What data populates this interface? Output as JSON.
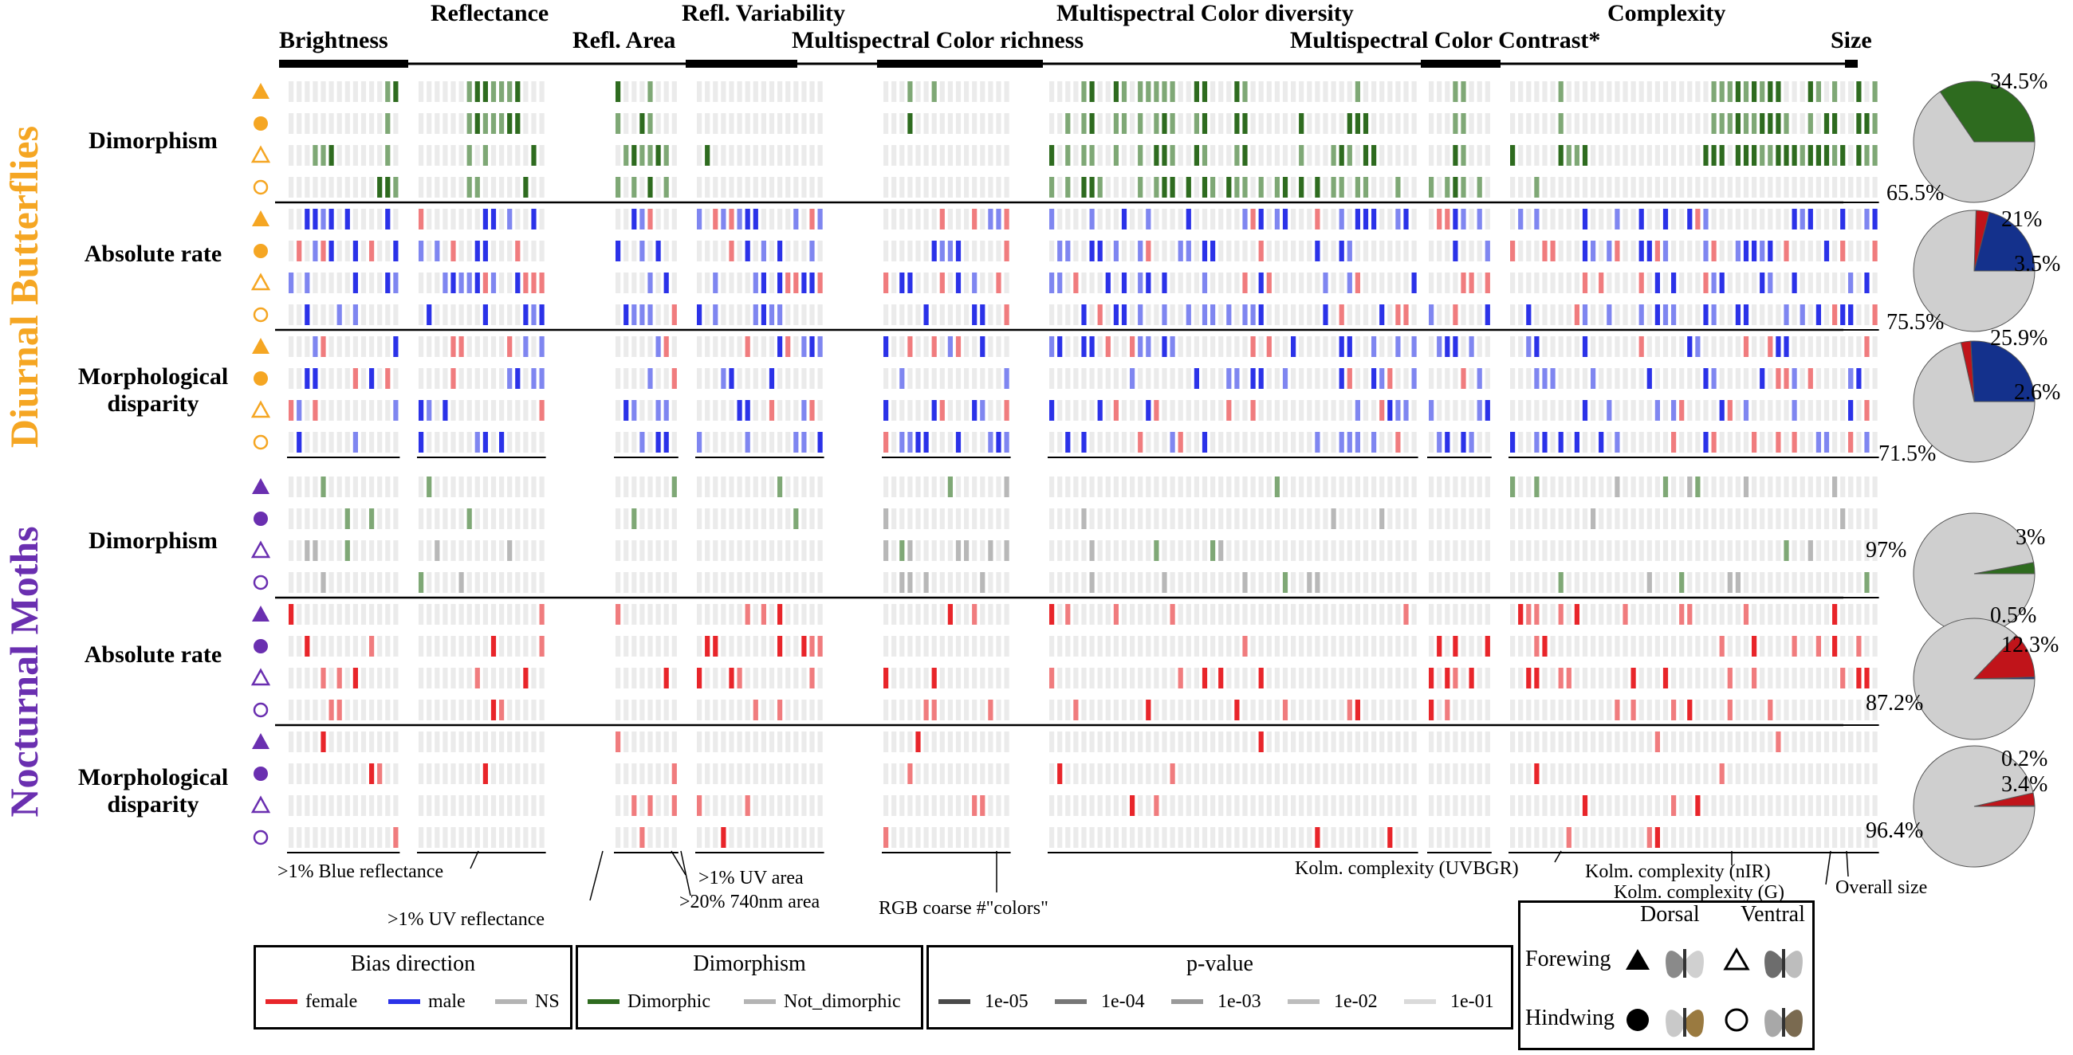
{
  "headers_top": [
    {
      "label": "Brightness"
    },
    {
      "label": "Reflectance"
    },
    {
      "label": "Refl. Variability"
    },
    {
      "label": "Multispectral Color diversity"
    },
    {
      "label": "Complexity"
    },
    {
      "label": "Size"
    }
  ],
  "headers_bottom": [
    {
      "label": "Refl. Area"
    },
    {
      "label": "Multispectral Color richness"
    },
    {
      "label": "Multispectral Color Contrast*"
    }
  ],
  "groups": [
    {
      "title": "Diurnal Butterflies",
      "color": "#F5A623"
    },
    {
      "title": "Nocturnal Moths",
      "color": "#6A2FB0"
    }
  ],
  "row_labels": [
    {
      "text": "Dimorphism"
    },
    {
      "text": "Absolute rate"
    },
    {
      "text": "Morphological disparity"
    },
    {
      "text": "Dimorphism"
    },
    {
      "text": "Absolute rate"
    },
    {
      "text": "Morphological disparity"
    }
  ],
  "row_shapes": [
    "triangle-filled",
    "circle-filled",
    "triangle-open",
    "circle-open"
  ],
  "colors": {
    "female": "#E8252A",
    "male": "#2B32E8",
    "ns": "#B4B4B4",
    "dimorphic": "#2E6B1F",
    "empty": "#EBEBEB",
    "pie_grey": "#CFCFCF",
    "pie_green": "#2E6B1F",
    "pie_blue": "#14318C",
    "pie_red": "#C0141A"
  },
  "chart_data": {
    "type": "heatmap",
    "pies": [
      {
        "slices": [
          {
            "label": "34.5%",
            "value": 34.5,
            "color": "green"
          },
          {
            "label": "65.5%",
            "value": 65.5,
            "color": "grey"
          }
        ]
      },
      {
        "slices": [
          {
            "label": "21%",
            "value": 21,
            "color": "blue"
          },
          {
            "label": "3.5%",
            "value": 3.5,
            "color": "red"
          },
          {
            "label": "75.5%",
            "value": 75.5,
            "color": "grey"
          }
        ]
      },
      {
        "slices": [
          {
            "label": "25.9%",
            "value": 25.9,
            "color": "blue"
          },
          {
            "label": "2.6%",
            "value": 2.6,
            "color": "red"
          },
          {
            "label": "71.5%",
            "value": 71.5,
            "color": "grey"
          }
        ]
      },
      {
        "slices": [
          {
            "label": "3%",
            "value": 3,
            "color": "green"
          },
          {
            "label": "97%",
            "value": 97,
            "color": "grey"
          }
        ]
      },
      {
        "slices": [
          {
            "label": "0.5%",
            "value": 0.5,
            "color": "blue"
          },
          {
            "label": "12.3%",
            "value": 12.3,
            "color": "red"
          },
          {
            "label": "87.2%",
            "value": 87.2,
            "color": "grey"
          }
        ]
      },
      {
        "slices": [
          {
            "label": "0.2%",
            "value": 0.2,
            "color": "blue"
          },
          {
            "label": "3.4%",
            "value": 3.4,
            "color": "red"
          },
          {
            "label": "96.4%",
            "value": 96.4,
            "color": "grey"
          }
        ]
      }
    ],
    "heatmap_blocks": [
      {
        "name": "butterfly-dimorphism",
        "kind": "green",
        "pattern": [
          "0000000000001101000000000011111110000101100010000110011001000000000000000000000000010010000000000000000011001101111100110001100000000000001000000010000000000000000001111111110001101011011101110011101011001010100001010001100100000000000000001111111111100100100101100010001101010110011000000001",
          "0000000000001000000000000011111110000101100110000110011000000000000000000000000000010000000000000000001011001101011100110001100000010000011100000010000000000000000001111111111001011011111011111101101101101100110011011101101110000000000000001111111111101111101111011011100110111101111011000001",
          "0001110000001000000000000010100000100001011111100111011001000100000000000000000000000000000000000011101011001001011100110001100000010001110110000011110000000000000011101111111111111101111101101111110111101011110111111111101111100000000000001111111111101001001011101101111001100010001111000001",
          "0000000000011101111100000011000001000101101010100111011000010000000000000000000000000000000000000001101011100001011101011011101011010101101100010000000000000000000000000000000000000000000000000000000000000000000000000000000000000000000000001111111111101101001001110101101111110111011011110001"
        ]
      }
    ],
    "legends": {
      "bias": {
        "title": "Bias direction",
        "items": [
          "female",
          "male",
          "NS"
        ]
      },
      "dimorphism": {
        "title": "Dimorphism",
        "items": [
          "Dimorphic",
          "Not_dimorphic"
        ]
      },
      "pvalue": {
        "title": "p-value",
        "items": [
          "1e-05",
          "1e-04",
          "1e-03",
          "1e-02",
          "1e-01"
        ]
      }
    }
  },
  "annotations": [
    {
      "text": ">1% Blue reflectance"
    },
    {
      "text": ">1% UV reflectance"
    },
    {
      "text": ">1% UV area"
    },
    {
      "text": ">20% 740nm area"
    },
    {
      "text": "RGB coarse #\"colors\""
    },
    {
      "text": "Kolm. complexity (UVBGR)"
    },
    {
      "text": "Kolm. complexity (nIR)"
    },
    {
      "text": "Kolm. complexity (G)"
    },
    {
      "text": "Overall size"
    }
  ],
  "wing_key": {
    "dorsal": "Dorsal",
    "ventral": "Ventral",
    "forewing": "Forewing",
    "hindwing": "Hindwing"
  }
}
